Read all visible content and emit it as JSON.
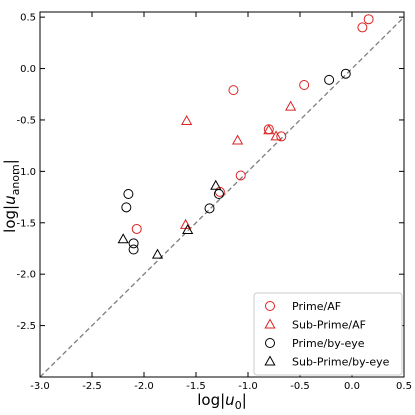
{
  "chart_data": {
    "type": "scatter",
    "title": "",
    "xlabel": {
      "pre": "log|",
      "var": "u",
      "sub": "0",
      "post": "|"
    },
    "ylabel": {
      "pre": "log|",
      "var": "u",
      "sub": "anom",
      "post": "|"
    },
    "xlim": [
      -3.0,
      0.5
    ],
    "ylim": [
      -3.0,
      0.55
    ],
    "x_ticks": [
      -3.0,
      -2.5,
      -2.0,
      -1.5,
      -1.0,
      -0.5,
      0.0,
      0.5
    ],
    "x_tick_labels": [
      "-3.0",
      "-2.5",
      "-2.0",
      "-1.5",
      "-1.0",
      "-0.5",
      "0.0",
      "0.5"
    ],
    "y_ticks": [
      -2.5,
      -2.0,
      -1.5,
      -1.0,
      -0.5,
      0.0,
      0.5
    ],
    "y_tick_labels": [
      "-2.5",
      "-2.0",
      "-1.5",
      "-1.0",
      "-0.5",
      "0.0",
      "0.5"
    ],
    "grid": false,
    "reference_line": {
      "style": "dashed",
      "color": "#808080",
      "slope": 1,
      "intercept": 0
    },
    "legend_position": "bottom-right",
    "series": [
      {
        "name": "Prime/AF",
        "marker": "circle",
        "color": "#dd2222",
        "points": [
          {
            "x": 0.16,
            "y": 0.48
          },
          {
            "x": 0.1,
            "y": 0.4
          },
          {
            "x": -0.46,
            "y": -0.16
          },
          {
            "x": -1.14,
            "y": -0.21
          },
          {
            "x": -0.8,
            "y": -0.59
          },
          {
            "x": -0.68,
            "y": -0.66
          },
          {
            "x": -1.07,
            "y": -1.04
          },
          {
            "x": -1.27,
            "y": -1.2
          },
          {
            "x": -2.07,
            "y": -1.56
          }
        ]
      },
      {
        "name": "Sub-Prime/AF",
        "marker": "triangle",
        "color": "#dd2222",
        "points": [
          {
            "x": -1.59,
            "y": -0.51
          },
          {
            "x": -0.59,
            "y": -0.37
          },
          {
            "x": -0.8,
            "y": -0.6
          },
          {
            "x": -0.73,
            "y": -0.66
          },
          {
            "x": -1.1,
            "y": -0.7
          },
          {
            "x": -1.6,
            "y": -1.52
          }
        ]
      },
      {
        "name": "Prime/by-eye",
        "marker": "circle",
        "color": "#000000",
        "points": [
          {
            "x": -0.06,
            "y": -0.05
          },
          {
            "x": -0.22,
            "y": -0.11
          },
          {
            "x": -2.15,
            "y": -1.22
          },
          {
            "x": -2.17,
            "y": -1.35
          },
          {
            "x": -1.37,
            "y": -1.36
          },
          {
            "x": -1.28,
            "y": -1.22
          },
          {
            "x": -2.1,
            "y": -1.7
          },
          {
            "x": -2.1,
            "y": -1.76
          }
        ]
      },
      {
        "name": "Sub-Prime/by-eye",
        "marker": "triangle",
        "color": "#000000",
        "points": [
          {
            "x": -1.31,
            "y": -1.14
          },
          {
            "x": -1.58,
            "y": -1.57
          },
          {
            "x": -2.2,
            "y": -1.66
          },
          {
            "x": -1.87,
            "y": -1.81
          }
        ]
      }
    ]
  }
}
